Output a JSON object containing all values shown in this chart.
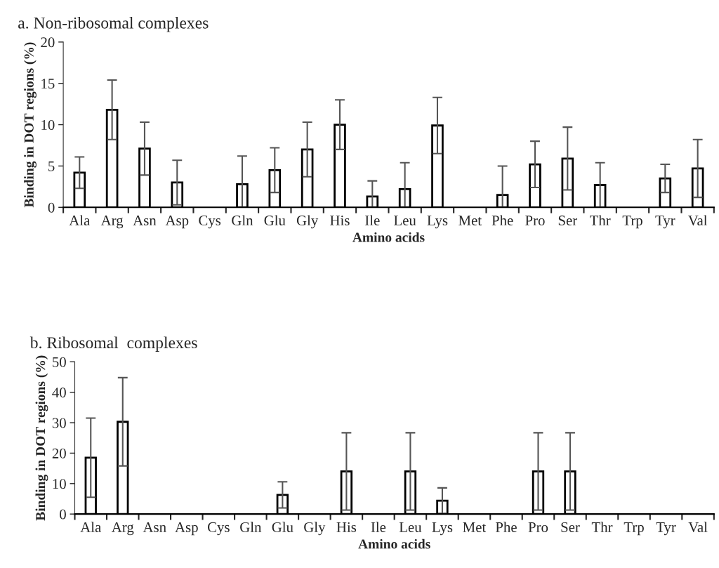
{
  "chart_data": [
    {
      "type": "bar",
      "title": "a. Non-ribosomal complexes",
      "xlabel": "Amino acids",
      "ylabel": "Binding in DOT regions (%)",
      "categories": [
        "Ala",
        "Arg",
        "Asn",
        "Asp",
        "Cys",
        "Gln",
        "Glu",
        "Gly",
        "His",
        "Ile",
        "Leu",
        "Lys",
        "Met",
        "Phe",
        "Pro",
        "Ser",
        "Thr",
        "Trp",
        "Tyr",
        "Val"
      ],
      "values": [
        4.2,
        11.8,
        7.1,
        3.0,
        0,
        2.8,
        4.5,
        7.0,
        10.0,
        1.3,
        2.2,
        9.9,
        0,
        1.5,
        5.2,
        5.9,
        2.7,
        0,
        3.5,
        4.7
      ],
      "errors": [
        1.9,
        3.6,
        3.2,
        2.7,
        null,
        3.4,
        2.7,
        3.3,
        3.0,
        1.9,
        3.2,
        3.4,
        null,
        3.5,
        2.8,
        3.8,
        2.7,
        null,
        1.7,
        3.5
      ],
      "color": "#ffffff",
      "ylim": [
        0,
        20
      ],
      "yticks": [
        0,
        5,
        10,
        15,
        20
      ],
      "grid": false,
      "legend": false
    },
    {
      "type": "bar",
      "title": "b. Ribosomal  complexes",
      "xlabel": "Amino acids",
      "ylabel": "Binding in DOT regions (%)",
      "categories": [
        "Ala",
        "Arg",
        "Asn",
        "Asp",
        "Cys",
        "Gln",
        "Glu",
        "Gly",
        "His",
        "Ile",
        "Leu",
        "Lys",
        "Met",
        "Phe",
        "Pro",
        "Ser",
        "Thr",
        "Trp",
        "Tyr",
        "Val"
      ],
      "values": [
        18.5,
        30.3,
        0,
        0,
        0,
        0,
        6.3,
        0,
        14.0,
        0,
        14.0,
        4.4,
        0,
        0,
        14.0,
        14.0,
        0,
        0,
        0,
        0
      ],
      "errors": [
        13.0,
        14.5,
        null,
        null,
        null,
        null,
        4.3,
        null,
        12.7,
        null,
        12.7,
        4.2,
        null,
        null,
        12.7,
        12.7,
        null,
        null,
        null,
        null
      ],
      "color": "#ffffff",
      "ylim": [
        0,
        50
      ],
      "yticks": [
        0,
        10,
        20,
        30,
        40,
        50
      ],
      "grid": false,
      "legend": false
    }
  ]
}
